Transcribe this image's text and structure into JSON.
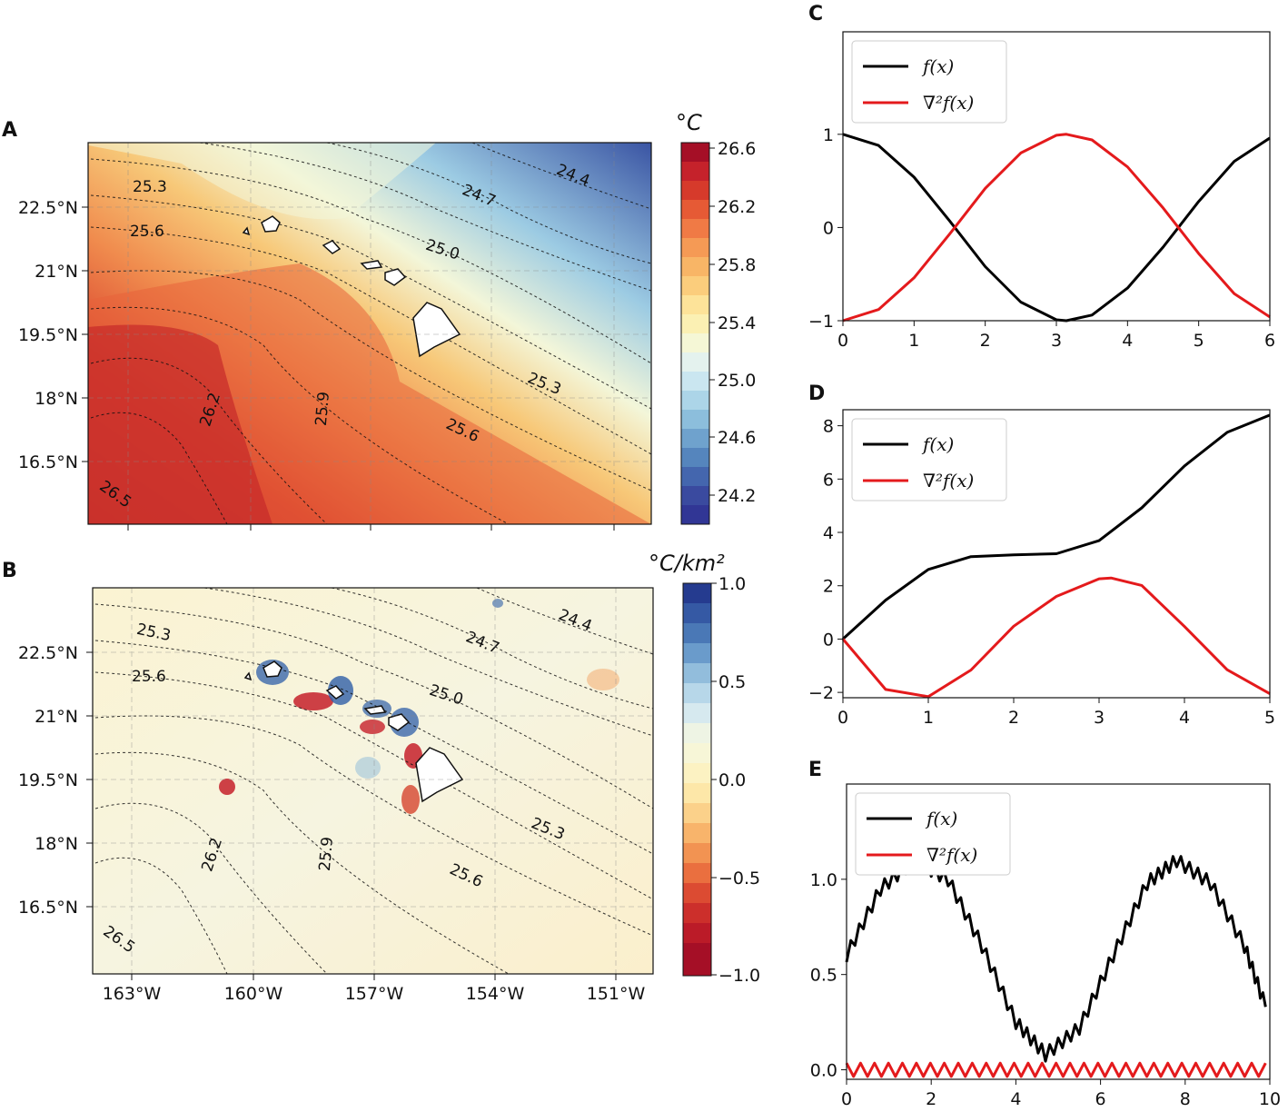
{
  "panels": {
    "A": {
      "letter": "A",
      "colorbar_unit": "°C",
      "colorbar_ticks": [
        "26.6",
        "26.2",
        "25.8",
        "25.4",
        "25.0",
        "24.6",
        "24.2"
      ],
      "contour_labels": [
        "25.3",
        "25.6",
        "24.7",
        "24.4",
        "25.0",
        "26.2",
        "25.9",
        "25.3",
        "25.6",
        "26.5"
      ],
      "lat_ticks": [
        "22.5°N",
        "21°N",
        "19.5°N",
        "18°N",
        "16.5°N"
      ]
    },
    "B": {
      "letter": "B",
      "colorbar_unit": "°C/km²",
      "colorbar_ticks": [
        "1.0",
        "0.5",
        "0.0",
        "−0.5",
        "−1.0"
      ],
      "contour_labels": [
        "25.3",
        "25.6",
        "24.7",
        "24.4",
        "25.0",
        "26.2",
        "25.9",
        "25.3",
        "25.6",
        "26.5"
      ],
      "lat_ticks": [
        "22.5°N",
        "21°N",
        "19.5°N",
        "18°N",
        "16.5°N"
      ],
      "lon_ticks": [
        "163°W",
        "160°W",
        "157°W",
        "154°W",
        "151°W"
      ]
    }
  },
  "colors": {
    "f": "#000000",
    "laplacian": "#e41a1c",
    "sst_warm": "#b2182b",
    "sst_cool": "#313695"
  },
  "chart_data": [
    {
      "id": "C",
      "letter": "C",
      "type": "line",
      "legend": [
        "f(x)",
        "∇²f(x)"
      ],
      "legend_position": "top-left",
      "xlim": [
        0,
        6
      ],
      "ylim": [
        -1,
        2.1
      ],
      "xticks": [
        0,
        1,
        2,
        3,
        4,
        5,
        6
      ],
      "yticks": [
        -1,
        0,
        1
      ],
      "ytick_labels": [
        "−1",
        "0",
        "1"
      ],
      "series": [
        {
          "name": "f(x)",
          "x": [
            0,
            0.5,
            1,
            1.5,
            2,
            2.5,
            3,
            3.14,
            3.5,
            4,
            4.5,
            5,
            5.5,
            6
          ],
          "y": [
            1,
            0.88,
            0.54,
            0.07,
            -0.42,
            -0.8,
            -0.99,
            -1,
            -0.94,
            -0.65,
            -0.21,
            0.28,
            0.71,
            0.96
          ]
        },
        {
          "name": "∇²f(x)",
          "x": [
            0,
            0.5,
            1,
            1.5,
            2,
            2.5,
            3,
            3.14,
            3.5,
            4,
            4.5,
            5,
            5.5,
            6
          ],
          "y": [
            -1,
            -0.88,
            -0.54,
            -0.07,
            0.42,
            0.8,
            0.99,
            1,
            0.94,
            0.65,
            0.21,
            -0.28,
            -0.71,
            -0.96
          ]
        }
      ]
    },
    {
      "id": "D",
      "letter": "D",
      "type": "line",
      "legend": [
        "f(x)",
        "∇²f(x)"
      ],
      "legend_position": "top-left",
      "xlim": [
        0,
        5
      ],
      "ylim": [
        -2.2,
        8.6
      ],
      "xticks": [
        0,
        1,
        2,
        3,
        4,
        5
      ],
      "yticks": [
        -2,
        0,
        2,
        4,
        6,
        8
      ],
      "ytick_labels": [
        "−2",
        "0",
        "2",
        "4",
        "6",
        "8"
      ],
      "series": [
        {
          "name": "f(x)",
          "x": [
            0,
            0.5,
            1,
            1.5,
            2,
            2.5,
            3,
            3.5,
            4,
            4.5,
            5
          ],
          "y": [
            0,
            1.46,
            2.61,
            3.09,
            3.16,
            3.2,
            3.69,
            4.92,
            6.49,
            7.75,
            8.4
          ]
        },
        {
          "name": "∇²f(x)",
          "x": [
            0,
            0.5,
            1,
            1.5,
            2,
            2.5,
            3,
            3.14,
            3.5,
            4,
            4.5,
            5
          ],
          "y": [
            0,
            -1.89,
            -2.16,
            -1.16,
            0.48,
            1.6,
            2.26,
            2.29,
            2.01,
            0.47,
            -1.15,
            -2.05
          ]
        }
      ]
    },
    {
      "id": "E",
      "letter": "E",
      "type": "line",
      "legend": [
        "f(x)",
        "∇²f(x)"
      ],
      "legend_position": "top-left",
      "xlim": [
        0,
        10
      ],
      "ylim": [
        -0.05,
        1.5
      ],
      "xticks": [
        0,
        2,
        4,
        6,
        8,
        10
      ],
      "yticks": [
        0.0,
        0.5,
        1.0
      ],
      "ytick_labels": [
        "0.0",
        "0.5",
        "1.0"
      ],
      "series": [
        {
          "name": "f(x)",
          "x": [
            0,
            0.8,
            1.6,
            2.4,
            3.2,
            4.0,
            4.7,
            5.5,
            6.3,
            7.1,
            7.8,
            8.6,
            9.4,
            9.9
          ],
          "y": [
            0.6,
            0.95,
            1.1,
            1.0,
            0.65,
            0.25,
            0.08,
            0.22,
            0.6,
            0.98,
            1.1,
            0.98,
            0.65,
            0.33
          ]
        },
        {
          "name": "∇²f(x)",
          "x": [
            0,
            9.9
          ],
          "y": [
            0.0,
            0.0
          ]
        }
      ]
    }
  ]
}
